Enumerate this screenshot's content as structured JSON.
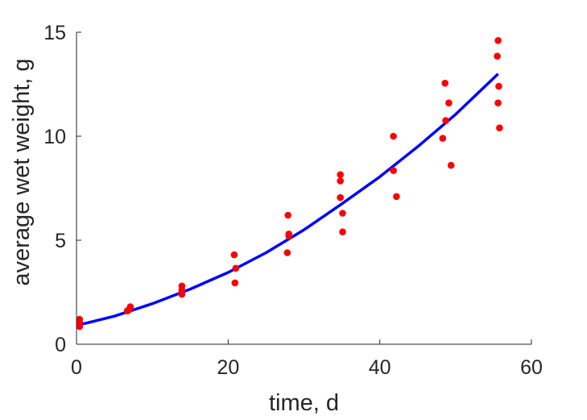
{
  "chart_data": {
    "type": "scatter",
    "xlabel": "time, d",
    "ylabel": "average wet weight, g",
    "xlim": [
      0,
      60
    ],
    "ylim": [
      0,
      15
    ],
    "x_ticks": [
      0,
      20,
      40,
      60
    ],
    "y_ticks": [
      0,
      5,
      10,
      15
    ],
    "x_tick_labels": [
      "0",
      "20",
      "40",
      "60"
    ],
    "y_tick_labels": [
      "0",
      "5",
      "10",
      "15"
    ],
    "grid": false,
    "legend": "none",
    "series": [
      {
        "type": "scatter",
        "color": "#ff0000",
        "points": [
          [
            0.4,
            1.2
          ],
          [
            0.4,
            1.05
          ],
          [
            0.4,
            0.95
          ],
          [
            0.4,
            0.85
          ],
          [
            6.7,
            1.6
          ],
          [
            6.9,
            1.65
          ],
          [
            7.1,
            1.8
          ],
          [
            13.9,
            2.8
          ],
          [
            13.9,
            2.6
          ],
          [
            13.9,
            2.4
          ],
          [
            20.8,
            4.3
          ],
          [
            21.0,
            3.65
          ],
          [
            20.9,
            2.95
          ],
          [
            27.9,
            6.2
          ],
          [
            28.0,
            5.3
          ],
          [
            28.0,
            5.2
          ],
          [
            27.8,
            4.4
          ],
          [
            34.8,
            8.15
          ],
          [
            34.8,
            7.85
          ],
          [
            34.8,
            7.05
          ],
          [
            35.1,
            6.3
          ],
          [
            35.1,
            5.4
          ],
          [
            41.8,
            10.0
          ],
          [
            41.8,
            8.35
          ],
          [
            42.2,
            7.1
          ],
          [
            48.6,
            12.55
          ],
          [
            49.1,
            11.6
          ],
          [
            48.7,
            10.75
          ],
          [
            48.3,
            9.9
          ],
          [
            49.4,
            8.6
          ],
          [
            55.6,
            14.6
          ],
          [
            55.5,
            13.85
          ],
          [
            55.7,
            12.4
          ],
          [
            55.6,
            11.6
          ],
          [
            55.8,
            10.4
          ]
        ]
      },
      {
        "type": "line",
        "color": "#0000ff",
        "x": [
          0,
          5,
          10,
          15,
          20,
          25,
          30,
          35,
          40,
          45,
          50,
          55.6
        ],
        "y": [
          0.9,
          1.35,
          1.95,
          2.65,
          3.45,
          4.4,
          5.5,
          6.75,
          8.05,
          9.5,
          11.05,
          13.0
        ]
      }
    ]
  }
}
